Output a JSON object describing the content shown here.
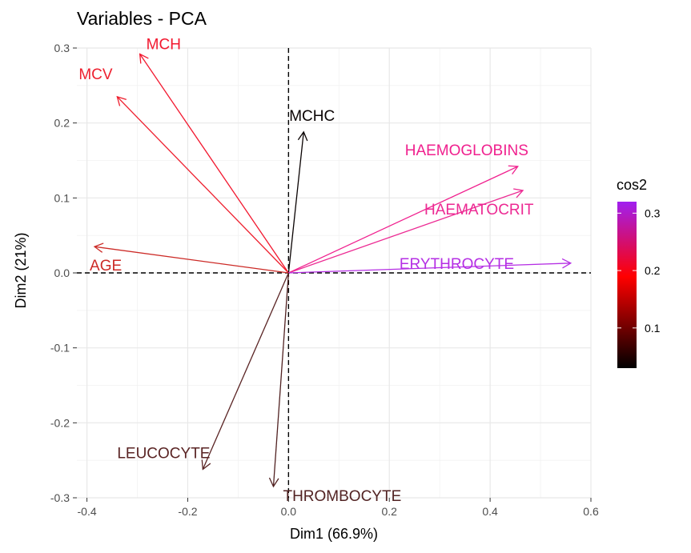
{
  "chart_data": {
    "type": "scatter",
    "title": "Variables - PCA",
    "xlabel": "Dim1 (66.9%)",
    "ylabel": "Dim2 (21%)",
    "xlim": [
      -0.42,
      0.6
    ],
    "ylim": [
      -0.3,
      0.3
    ],
    "x_ticks": [
      -0.4,
      -0.2,
      0.0,
      0.2,
      0.4,
      0.6
    ],
    "x_tick_labels": [
      "-0.4",
      "-0.2",
      "0.0",
      "0.2",
      "0.4",
      "0.6"
    ],
    "y_ticks": [
      -0.3,
      -0.2,
      -0.1,
      0.0,
      0.1,
      0.2,
      0.3
    ],
    "y_tick_labels": [
      "-0.3",
      "-0.2",
      "-0.1",
      "0.0",
      "0.1",
      "0.2",
      "0.3"
    ],
    "grid": true,
    "reference_lines": {
      "x": 0,
      "y": 0,
      "style": "dashed"
    },
    "arrows_from_origin": true,
    "variables": [
      {
        "name": "MCH",
        "x": -0.295,
        "y": 0.292,
        "cos2": 0.21,
        "color": "#f2182f"
      },
      {
        "name": "MCV",
        "x": -0.34,
        "y": 0.235,
        "cos2": 0.2,
        "color": "#ee1f2e"
      },
      {
        "name": "MCHC",
        "x": 0.03,
        "y": 0.188,
        "cos2": 0.03,
        "color": "#0a0303"
      },
      {
        "name": "HAEMOGLOBINS",
        "x": 0.455,
        "y": 0.142,
        "cos2": 0.27,
        "color": "#f0208e"
      },
      {
        "name": "HAEMATOCRIT",
        "x": 0.465,
        "y": 0.11,
        "cos2": 0.28,
        "color": "#ec2a93"
      },
      {
        "name": "AGE",
        "x": -0.385,
        "y": 0.035,
        "cos2": 0.17,
        "color": "#cc2a26"
      },
      {
        "name": "ERYTHROCYTE",
        "x": 0.56,
        "y": 0.013,
        "cos2": 0.32,
        "color": "#b52fe4"
      },
      {
        "name": "LEUCOCYTE",
        "x": -0.17,
        "y": -0.262,
        "cos2": 0.08,
        "color": "#5a2424"
      },
      {
        "name": "THROMBOCYTE",
        "x": -0.03,
        "y": -0.285,
        "cos2": 0.07,
        "color": "#512222"
      }
    ],
    "legend": {
      "title": "cos2",
      "position": "right",
      "colors": [
        "#000000",
        "#ff0000",
        "#a020f0"
      ],
      "range": [
        0.03,
        0.32
      ],
      "ticks": [
        0.1,
        0.2,
        0.3
      ],
      "tick_labels": [
        "0.1",
        "0.2",
        "0.3"
      ]
    }
  }
}
